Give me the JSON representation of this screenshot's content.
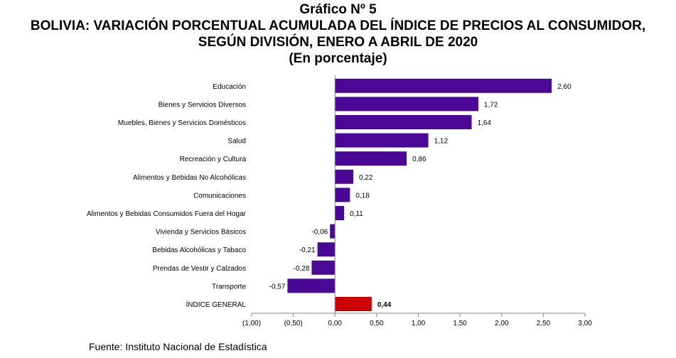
{
  "header": {
    "label": "Gráfico Nº 5",
    "title_line1": "BOLIVIA: VARIACIÓN PORCENTUAL ACUMULADA DEL ÍNDICE DE PRECIOS AL CONSUMIDOR,",
    "title_line2": "SEGÚN DIVISIÓN, ENERO A ABRIL DE 2020",
    "subtitle": "(En porcentaje)"
  },
  "source": "Fuente: Instituto Nacional de Estadística",
  "colors": {
    "bar": "#4B0896",
    "highlight": "#CC0000"
  },
  "chart_data": {
    "type": "bar",
    "orientation": "horizontal",
    "categories": [
      "Educación",
      "Bienes y Servicios Diversos",
      "Muebles, Bienes y Servicios Domésticos",
      "Salud",
      "Recreación y Cultura",
      "Alimentos y Bebidas No Alcohólicas",
      "Comunicaciones",
      "Alimentos y Bebidas Consumidos Fuera del Hogar",
      "Vivienda y Servicios Básicos",
      "Bebidas Alcohólicas y Tabaco",
      "Prendas de Vestir y Calzados",
      "Transporte",
      "ÍNDICE GENERAL"
    ],
    "values": [
      2.6,
      1.72,
      1.64,
      1.12,
      0.86,
      0.22,
      0.18,
      0.11,
      -0.06,
      -0.21,
      -0.28,
      -0.57,
      0.44
    ],
    "value_labels": [
      "2,60",
      "1,72",
      "1,64",
      "1,12",
      "0,86",
      "0,22",
      "0,18",
      "0,11",
      "-0,06",
      "-0,21",
      "-0,28",
      "-0,57",
      "0,44"
    ],
    "highlight_category": "ÍNDICE GENERAL",
    "xlim": [
      -1.0,
      3.0
    ],
    "xticks": [
      -1.0,
      -0.5,
      0.0,
      0.5,
      1.0,
      1.5,
      2.0,
      2.5,
      3.0
    ],
    "xtick_labels": [
      "(1,00)",
      "(0,50)",
      "0,00",
      "0,50",
      "1,00",
      "1,50",
      "2,00",
      "2,50",
      "3,00"
    ],
    "grid": false,
    "legend": "none"
  }
}
